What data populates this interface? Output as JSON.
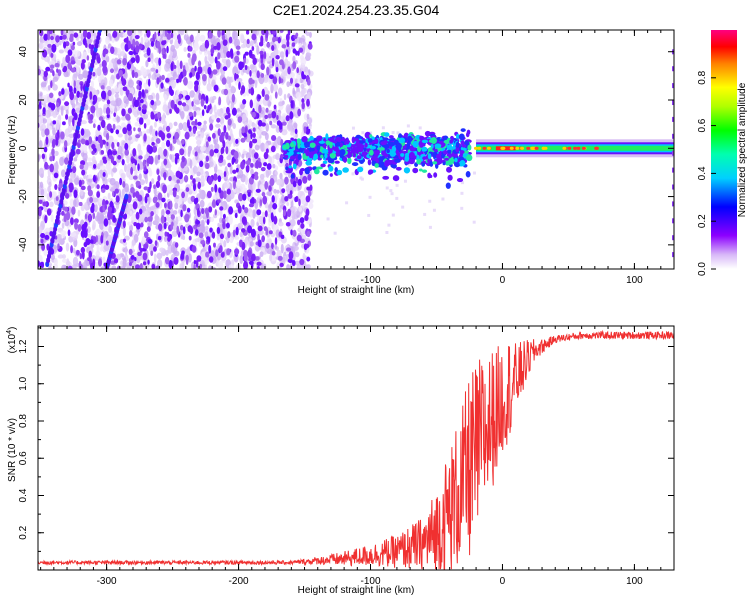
{
  "title": "C2E1.2024.254.23.35.G04",
  "colors": {
    "snr_line": "#f03030",
    "axis": "#000000"
  },
  "chart_data": [
    {
      "type": "heatmap",
      "title": "C2E1.2024.254.23.35.G04",
      "xlabel": "Height of straight line (km)",
      "ylabel": "Frequency (Hz)",
      "xlim": [
        -352,
        130
      ],
      "ylim": [
        -50,
        49
      ],
      "xticks": [
        -300,
        -200,
        -100,
        0,
        100
      ],
      "xtick_labels": [
        "-300",
        "-200",
        "-100",
        "0",
        "100"
      ],
      "yticks": [
        -40,
        -20,
        0,
        20,
        40
      ],
      "ytick_labels": [
        "-40",
        "-20",
        "0",
        "20",
        "40"
      ],
      "colorbar": {
        "label": "Normalized spectral amplitude",
        "range": [
          0,
          1
        ],
        "ticks": [
          0.0,
          0.2,
          0.4,
          0.6,
          0.8
        ],
        "tick_labels": [
          "0.0",
          "0.2",
          "0.4",
          "0.6",
          "0.8"
        ],
        "colormap": "rainbow (white-violet-blue-cyan-green-yellow-red-magenta)"
      },
      "features": {
        "noise_region_x": [
          -352,
          -145
        ],
        "carrier_frequency_hz": 0,
        "carrier_strong_from_x": -20,
        "scatter_region_x": [
          -165,
          -25
        ],
        "diagonal_streaks": [
          {
            "x_start": -345,
            "y_start": -48,
            "x_end": -305,
            "y_end": 49
          },
          {
            "x_start": -300,
            "y_start": -50,
            "x_end": -285,
            "y_end": -20
          }
        ]
      }
    },
    {
      "type": "line",
      "xlabel": "Height of straight line (km)",
      "ylabel": "SNR (10 * v/v)",
      "multiplier_label": "(x10",
      "multiplier_exp": "4",
      "multiplier_close": ")",
      "xlim": [
        -352,
        130
      ],
      "ylim": [
        0.0,
        1.31
      ],
      "xticks": [
        -300,
        -200,
        -100,
        0,
        100
      ],
      "xtick_labels": [
        "-300",
        "-200",
        "-100",
        "0",
        "100"
      ],
      "yticks": [
        0.2,
        0.4,
        0.6,
        0.8,
        1.0,
        1.2
      ],
      "ytick_labels": [
        "0.2",
        "0.4",
        "0.6",
        "0.8",
        "1.0",
        "1.2"
      ],
      "series": [
        {
          "color": "#f03030",
          "x": [
            -352,
            -300,
            -250,
            -200,
            -160,
            -140,
            -120,
            -100,
            -80,
            -60,
            -50,
            -40,
            -30,
            -25,
            -20,
            -15,
            -10,
            -5,
            0,
            5,
            10,
            15,
            20,
            25,
            30,
            35,
            40,
            50,
            60,
            80,
            100,
            130
          ],
          "y": [
            0.04,
            0.04,
            0.04,
            0.04,
            0.04,
            0.05,
            0.06,
            0.08,
            0.1,
            0.14,
            0.2,
            0.32,
            0.45,
            0.55,
            0.62,
            0.72,
            0.78,
            0.85,
            0.92,
            0.98,
            1.02,
            1.08,
            1.14,
            1.18,
            1.2,
            1.22,
            1.24,
            1.25,
            1.26,
            1.26,
            1.26,
            1.26
          ],
          "noise_amplitude_y": [
            0.01,
            0.01,
            0.01,
            0.01,
            0.01,
            0.02,
            0.04,
            0.06,
            0.09,
            0.15,
            0.25,
            0.35,
            0.45,
            0.5,
            0.5,
            0.45,
            0.4,
            0.35,
            0.3,
            0.28,
            0.2,
            0.15,
            0.1,
            0.06,
            0.04,
            0.03,
            0.02,
            0.02,
            0.02,
            0.02,
            0.02,
            0.02
          ]
        }
      ]
    }
  ]
}
